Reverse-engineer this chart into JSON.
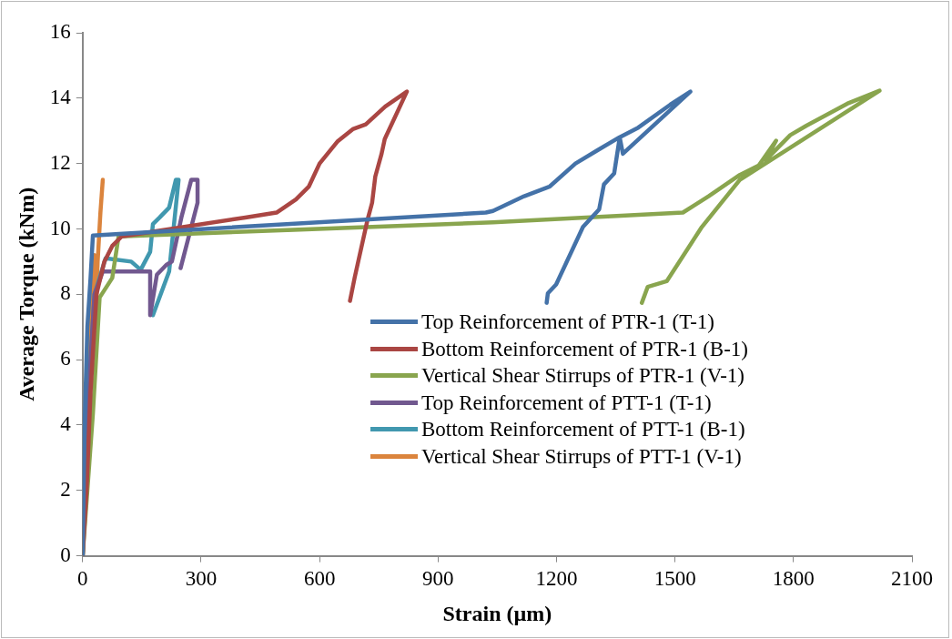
{
  "chart_data": {
    "type": "line",
    "xlabel": "Strain (µm)",
    "ylabel": "Average Torque (kNm)",
    "xlim": [
      0,
      2100
    ],
    "ylim": [
      0,
      16
    ],
    "xticks": [
      0,
      300,
      600,
      900,
      1200,
      1500,
      1800,
      2100
    ],
    "yticks": [
      0,
      2,
      4,
      6,
      8,
      10,
      12,
      14,
      16
    ],
    "grid": false,
    "legend": "bottom right",
    "marker": "none",
    "line_style": "solid",
    "series": [
      {
        "name": "Top Reinforcement of PTR-1 (T-1)",
        "color": "#4472a8",
        "x": [
          0,
          5,
          12,
          20,
          26,
          1021,
          1039,
          1118,
          1183,
          1248,
          1303,
          1359,
          1407,
          1488,
          1539,
          1368,
          1360,
          1346,
          1320,
          1308,
          1267,
          1199,
          1178,
          1175
        ],
        "values": [
          0,
          4,
          7,
          8.5,
          9.8,
          10.5,
          10.55,
          11,
          11.3,
          12,
          12.4,
          12.8,
          13.1,
          13.8,
          14.2,
          12.3,
          12.8,
          11.7,
          11.36,
          10.6,
          10.06,
          8.3,
          8.03,
          7.74
        ]
      },
      {
        "name": "Bottom Reinforcement of PTR-1 (B-1)",
        "color": "#aa4643",
        "x": [
          0,
          10,
          20,
          35,
          55,
          75,
          99,
          412,
          491,
          540,
          573,
          600,
          645,
          684,
          717,
          766,
          821,
          765,
          757,
          741,
          733,
          721,
          689,
          677
        ],
        "values": [
          0,
          2,
          5,
          8,
          9,
          9.48,
          9.77,
          10.35,
          10.5,
          10.9,
          11.3,
          12,
          12.67,
          13.05,
          13.2,
          13.74,
          14.2,
          12.75,
          12.3,
          11.6,
          10.8,
          10.26,
          8.52,
          7.8
        ]
      },
      {
        "name": "Vertical Shear Stirrups of PTR-1 (V-1)",
        "color": "#89a54e",
        "x": [
          0,
          26,
          43,
          75,
          91,
          1039,
          1520,
          1585,
          1664,
          1712,
          1756,
          1729,
          1792,
          1833,
          1936,
          2018,
          1664,
          1568,
          1479,
          1431,
          1416
        ],
        "values": [
          0,
          4.35,
          7.9,
          8.5,
          9.77,
          10.2,
          10.5,
          11,
          11.65,
          11.94,
          12.7,
          12.1,
          12.87,
          13.16,
          13.83,
          14.23,
          11.5,
          10.06,
          8.4,
          8.23,
          7.74
        ]
      },
      {
        "name": "Top Reinforcement of PTT-1 (T-1)",
        "color": "#71588f",
        "x": [
          0,
          20,
          30,
          51,
          171,
          171,
          188,
          212,
          226,
          250,
          275,
          291,
          291,
          248
        ],
        "values": [
          0,
          6,
          8,
          8.7,
          8.7,
          7.36,
          8.6,
          8.9,
          9,
          10.35,
          11.5,
          11.5,
          10.8,
          8.8
        ]
      },
      {
        "name": "Bottom Reinforcement of PTT-1 (B-1)",
        "color": "#4198af",
        "x": [
          0,
          20,
          30,
          58,
          123,
          147,
          171,
          178,
          195,
          219,
          236,
          243,
          219,
          178
        ],
        "values": [
          0,
          6,
          8,
          9.1,
          9,
          8.75,
          9.3,
          10.15,
          10.35,
          10.65,
          11.5,
          11.5,
          8.7,
          7.36
        ]
      },
      {
        "name": "Vertical Shear Stirrups of PTT-1 (V-1)",
        "color": "#db843d",
        "x": [
          0,
          8,
          15,
          22,
          30,
          34,
          38,
          45,
          51
        ],
        "values": [
          0,
          3,
          6,
          8,
          9.2,
          7.4,
          9,
          10.5,
          11.5
        ]
      }
    ]
  }
}
